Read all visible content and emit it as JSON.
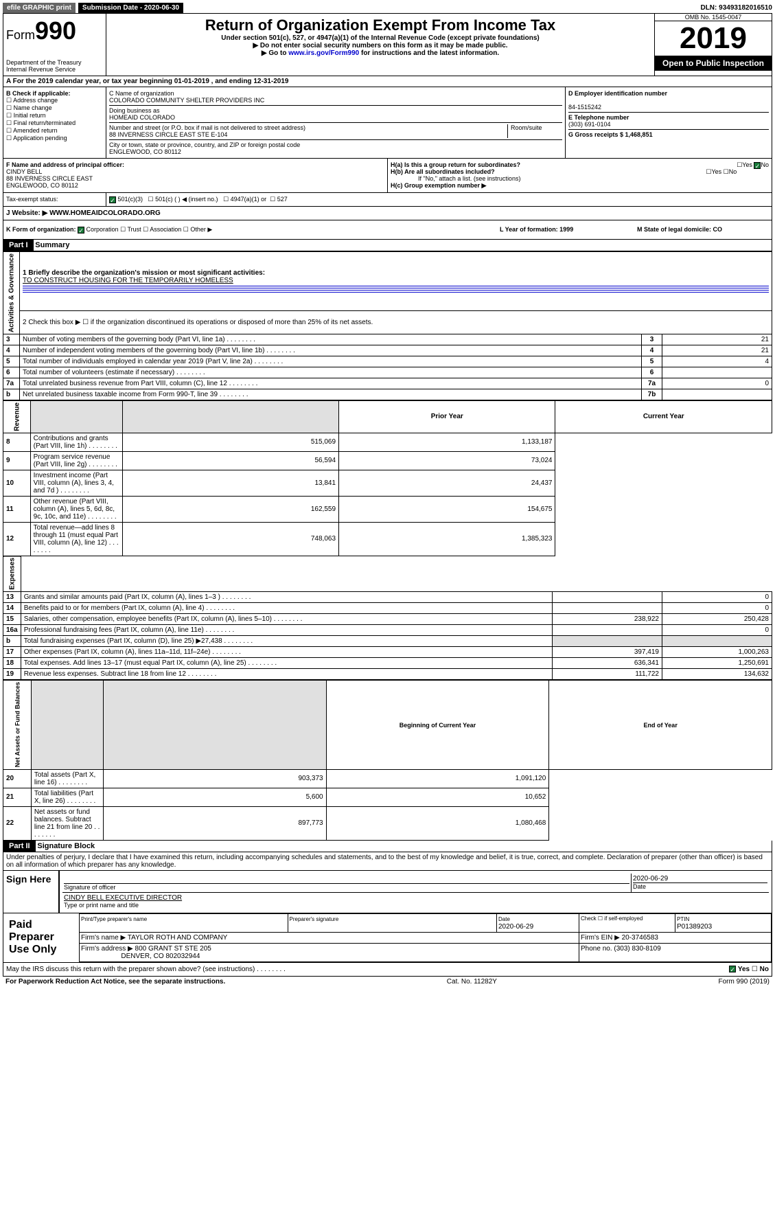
{
  "top": {
    "efile": "efile GRAPHIC print",
    "submission": "Submission Date - 2020-06-30",
    "dln": "DLN: 93493182016510"
  },
  "header": {
    "form_prefix": "Form",
    "form_number": "990",
    "dept": "Department of the Treasury",
    "irs": "Internal Revenue Service",
    "title": "Return of Organization Exempt From Income Tax",
    "subtitle1": "Under section 501(c), 527, or 4947(a)(1) of the Internal Revenue Code (except private foundations)",
    "subtitle2": "▶ Do not enter social security numbers on this form as it may be made public.",
    "subtitle3_pre": "▶ Go to ",
    "subtitle3_link": "www.irs.gov/Form990",
    "subtitle3_post": " for instructions and the latest information.",
    "omb": "OMB No. 1545-0047",
    "year": "2019",
    "open": "Open to Public Inspection"
  },
  "rowA": {
    "text": "A For the 2019 calendar year, or tax year beginning 01-01-2019    , and ending 12-31-2019"
  },
  "boxB": {
    "label": "B Check if applicable:",
    "opts": [
      "Address change",
      "Name change",
      "Initial return",
      "Final return/terminated",
      "Amended return",
      "Application pending"
    ]
  },
  "boxC": {
    "name_label": "C Name of organization",
    "name": "COLORADO COMMUNITY SHELTER PROVIDERS INC",
    "dba_label": "Doing business as",
    "dba": "HOMEAID COLORADO",
    "addr_label": "Number and street (or P.O. box if mail is not delivered to street address)",
    "room_label": "Room/suite",
    "addr": "88 INVERNESS CIRCLE EAST STE E-104",
    "city_label": "City or town, state or province, country, and ZIP or foreign postal code",
    "city": "ENGLEWOOD, CO  80112"
  },
  "boxD": {
    "label": "D Employer identification number",
    "val": "84-1515242"
  },
  "boxE": {
    "label": "E Telephone number",
    "val": "(303) 691-0104"
  },
  "boxG": {
    "label": "G Gross receipts $ 1,468,851"
  },
  "boxF": {
    "label": "F  Name and address of principal officer:",
    "name": "CINDY BELL",
    "addr1": "88 INVERNESS CIRCLE EAST",
    "addr2": "ENGLEWOOD, CO  80112"
  },
  "boxH": {
    "a": "H(a)  Is this a group return for subordinates?",
    "b": "H(b)  Are all subordinates included?",
    "b_note": "If \"No,\" attach a list. (see instructions)",
    "c": "H(c)  Group exemption number ▶"
  },
  "taxExempt": {
    "label": "Tax-exempt status:",
    "opt1": "501(c)(3)",
    "opt2": "501(c) (   ) ◀ (insert no.)",
    "opt3": "4947(a)(1) or",
    "opt4": "527"
  },
  "rowJ": {
    "label": "J   Website: ▶",
    "val": "WWW.HOMEAIDCOLORADO.ORG"
  },
  "rowK": {
    "k": "K Form of organization:",
    "corp": "Corporation",
    "trust": "Trust",
    "assoc": "Association",
    "other": "Other ▶",
    "l": "L Year of formation: 1999",
    "m": "M State of legal domicile: CO"
  },
  "part1": {
    "header": "Part I",
    "title": "Summary",
    "line1_label": "1  Briefly describe the organization's mission or most significant activities:",
    "line1_val": "TO CONSTRUCT HOUSING FOR THE TEMPORARILY HOMELESS",
    "line2": "2   Check this box ▶ ☐  if the organization discontinued its operations or disposed of more than 25% of its net assets.",
    "lines_top": [
      {
        "n": "3",
        "t": "Number of voting members of the governing body (Part VI, line 1a)",
        "box": "3",
        "v": "21"
      },
      {
        "n": "4",
        "t": "Number of independent voting members of the governing body (Part VI, line 1b)",
        "box": "4",
        "v": "21"
      },
      {
        "n": "5",
        "t": "Total number of individuals employed in calendar year 2019 (Part V, line 2a)",
        "box": "5",
        "v": "4"
      },
      {
        "n": "6",
        "t": "Total number of volunteers (estimate if necessary)",
        "box": "6",
        "v": ""
      },
      {
        "n": "7a",
        "t": "Total unrelated business revenue from Part VIII, column (C), line 12",
        "box": "7a",
        "v": "0"
      },
      {
        "n": "b",
        "t": "Net unrelated business taxable income from Form 990-T, line 39",
        "box": "7b",
        "v": ""
      }
    ],
    "col_prior": "Prior Year",
    "col_current": "Current Year",
    "revenue": [
      {
        "n": "8",
        "t": "Contributions and grants (Part VIII, line 1h)",
        "p": "515,069",
        "c": "1,133,187"
      },
      {
        "n": "9",
        "t": "Program service revenue (Part VIII, line 2g)",
        "p": "56,594",
        "c": "73,024"
      },
      {
        "n": "10",
        "t": "Investment income (Part VIII, column (A), lines 3, 4, and 7d )",
        "p": "13,841",
        "c": "24,437"
      },
      {
        "n": "11",
        "t": "Other revenue (Part VIII, column (A), lines 5, 6d, 8c, 9c, 10c, and 11e)",
        "p": "162,559",
        "c": "154,675"
      },
      {
        "n": "12",
        "t": "Total revenue—add lines 8 through 11 (must equal Part VIII, column (A), line 12)",
        "p": "748,063",
        "c": "1,385,323"
      }
    ],
    "expenses": [
      {
        "n": "13",
        "t": "Grants and similar amounts paid (Part IX, column (A), lines 1–3 )",
        "p": "",
        "c": "0"
      },
      {
        "n": "14",
        "t": "Benefits paid to or for members (Part IX, column (A), line 4)",
        "p": "",
        "c": "0"
      },
      {
        "n": "15",
        "t": "Salaries, other compensation, employee benefits (Part IX, column (A), lines 5–10)",
        "p": "238,922",
        "c": "250,428"
      },
      {
        "n": "16a",
        "t": "Professional fundraising fees (Part IX, column (A), line 11e)",
        "p": "",
        "c": "0"
      },
      {
        "n": "b",
        "t": "Total fundraising expenses (Part IX, column (D), line 25) ▶27,438",
        "p": "shade",
        "c": "shade"
      },
      {
        "n": "17",
        "t": "Other expenses (Part IX, column (A), lines 11a–11d, 11f–24e)",
        "p": "397,419",
        "c": "1,000,263"
      },
      {
        "n": "18",
        "t": "Total expenses. Add lines 13–17 (must equal Part IX, column (A), line 25)",
        "p": "636,341",
        "c": "1,250,691"
      },
      {
        "n": "19",
        "t": "Revenue less expenses. Subtract line 18 from line 12",
        "p": "111,722",
        "c": "134,632"
      }
    ],
    "col_begin": "Beginning of Current Year",
    "col_end": "End of Year",
    "netassets": [
      {
        "n": "20",
        "t": "Total assets (Part X, line 16)",
        "p": "903,373",
        "c": "1,091,120"
      },
      {
        "n": "21",
        "t": "Total liabilities (Part X, line 26)",
        "p": "5,600",
        "c": "10,652"
      },
      {
        "n": "22",
        "t": "Net assets or fund balances. Subtract line 21 from line 20",
        "p": "897,773",
        "c": "1,080,468"
      }
    ],
    "side_ag": "Activities & Governance",
    "side_rev": "Revenue",
    "side_exp": "Expenses",
    "side_na": "Net Assets or Fund Balances"
  },
  "part2": {
    "header": "Part II",
    "title": "Signature Block",
    "perjury": "Under penalties of perjury, I declare that I have examined this return, including accompanying schedules and statements, and to the best of my knowledge and belief, it is true, correct, and complete. Declaration of preparer (other than officer) is based on all information of which preparer has any knowledge.",
    "sign_here": "Sign Here",
    "sig_officer": "Signature of officer",
    "sig_date_val": "2020-06-29",
    "sig_date": "Date",
    "sig_name": "CINDY BELL EXECUTIVE DIRECTOR",
    "sig_type": "Type or print name and title",
    "paid": "Paid Preparer Use Only",
    "prep_name_label": "Print/Type preparer's name",
    "prep_sig_label": "Preparer's signature",
    "prep_date_label": "Date",
    "prep_date_val": "2020-06-29",
    "prep_check": "Check ☐ if self-employed",
    "ptin_label": "PTIN",
    "ptin": "P01389203",
    "firm_name_label": "Firm's name    ▶",
    "firm_name": "TAYLOR ROTH AND COMPANY",
    "firm_ein": "Firm's EIN ▶ 20-3746583",
    "firm_addr_label": "Firm's address ▶",
    "firm_addr1": "800 GRANT ST STE 205",
    "firm_addr2": "DENVER, CO  802032944",
    "phone": "Phone no. (303) 830-8109",
    "discuss": "May the IRS discuss this return with the preparer shown above? (see instructions)",
    "yes": "Yes",
    "no": "No"
  },
  "footer": {
    "left": "For Paperwork Reduction Act Notice, see the separate instructions.",
    "mid": "Cat. No. 11282Y",
    "right": "Form 990 (2019)"
  }
}
